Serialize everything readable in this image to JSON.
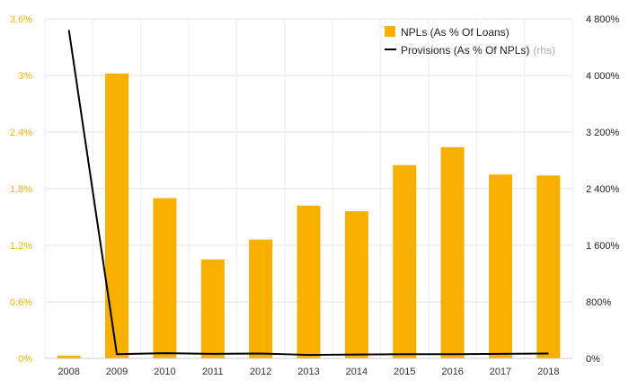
{
  "chart_data": {
    "type": "bar",
    "categories": [
      "2008",
      "2009",
      "2010",
      "2011",
      "2012",
      "2013",
      "2014",
      "2015",
      "2016",
      "2017",
      "2018"
    ],
    "series": [
      {
        "name": "NPLs (As % Of Loans)",
        "type": "bar",
        "axis": "left",
        "color": "#f7b000",
        "values": [
          0.03,
          3.02,
          1.7,
          1.05,
          1.26,
          1.62,
          1.56,
          2.05,
          2.24,
          1.95,
          1.94
        ]
      },
      {
        "name": "Provisions (As % Of NPLs)",
        "type": "line",
        "axis": "right",
        "color": "#000000",
        "values": [
          4640,
          60,
          75,
          65,
          70,
          50,
          55,
          60,
          60,
          65,
          70
        ]
      }
    ],
    "legend": {
      "bar_label": "NPLs (As % Of Loans)",
      "line_label": "Provisions (As % Of NPLs)",
      "line_suffix": "(rhs)",
      "position": "top-right"
    },
    "y_left": {
      "ylim": [
        0,
        3.6
      ],
      "ticks": [
        0,
        0.6,
        1.2,
        1.8,
        2.4,
        3,
        3.6
      ],
      "tick_labels": [
        "0%",
        "0.6%",
        "1.2%",
        "1.8%",
        "2.4%",
        "3%",
        "3.6%"
      ],
      "color": "#f7b000"
    },
    "y_right": {
      "ylim": [
        0,
        4800
      ],
      "ticks": [
        0,
        800,
        1600,
        2400,
        3200,
        4000,
        4800
      ],
      "tick_labels": [
        "0%",
        "800%",
        "1 600%",
        "2 400%",
        "3 200%",
        "4 000%",
        "4 800%"
      ],
      "color": "#222222"
    },
    "grid": true,
    "title": "",
    "xlabel": "",
    "ylabel": ""
  }
}
